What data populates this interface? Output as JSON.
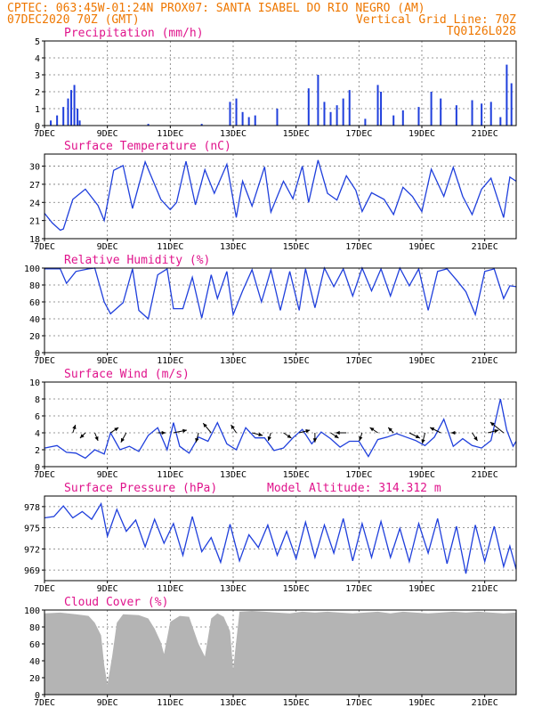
{
  "header": {
    "line1_left": "CPTEC:  063:45W-01:24N  PROX07: SANTA ISABEL DO RIO NEGRO (AM)",
    "line2_left": "07DEC2020 70Z (GMT)",
    "line2_right": "Vertical Grid Line: 70Z",
    "line3_right": "TQ0126L028"
  },
  "x_axis": {
    "start_day": 7,
    "end_day": 22,
    "tick_labels": [
      "7DEC",
      "9DEC",
      "11DEC",
      "13DEC",
      "15DEC",
      "17DEC",
      "19DEC",
      "21DEC"
    ],
    "tick_days": [
      7,
      9,
      11,
      13,
      15,
      17,
      19,
      21
    ]
  },
  "chart_data": [
    {
      "id": "precip",
      "type": "bar",
      "title": "Precipitation (mm/h)",
      "ylim": [
        0,
        5
      ],
      "yticks": [
        0,
        1,
        2,
        3,
        4,
        5
      ],
      "color": "#1f3fdc",
      "days": [
        7.2,
        7.4,
        7.6,
        7.75,
        7.85,
        7.95,
        8.05,
        8.12,
        10.3,
        12.0,
        12.9,
        13.1,
        13.3,
        13.5,
        13.7,
        14.4,
        15.4,
        15.7,
        15.9,
        16.1,
        16.3,
        16.5,
        16.7,
        17.2,
        17.6,
        17.7,
        18.1,
        18.4,
        18.9,
        19.3,
        19.6,
        20.1,
        20.6,
        20.9,
        21.2,
        21.5,
        21.7,
        21.85
      ],
      "values": [
        0.3,
        0.6,
        1.1,
        1.6,
        2.1,
        2.4,
        1.0,
        0.3,
        0.1,
        0.1,
        1.4,
        1.6,
        0.8,
        0.5,
        0.6,
        1.0,
        2.2,
        3.0,
        1.4,
        0.8,
        1.2,
        1.6,
        2.1,
        0.4,
        2.4,
        2.0,
        0.6,
        0.9,
        1.1,
        2.0,
        1.6,
        1.2,
        1.5,
        1.3,
        1.4,
        0.5,
        3.6,
        2.5
      ]
    },
    {
      "id": "temperature",
      "type": "line",
      "title": "Surface Temperature (nC)",
      "ylim": [
        18,
        32
      ],
      "yticks": [
        18,
        21,
        24,
        27,
        30
      ],
      "color": "#1f3fdc",
      "x": [
        7.0,
        7.25,
        7.5,
        7.6,
        7.9,
        8.3,
        8.7,
        8.9,
        9.2,
        9.5,
        9.8,
        10.2,
        10.7,
        11.0,
        11.2,
        11.5,
        11.8,
        12.1,
        12.4,
        12.8,
        13.1,
        13.3,
        13.6,
        14.0,
        14.2,
        14.6,
        14.9,
        15.2,
        15.4,
        15.7,
        16.0,
        16.3,
        16.6,
        16.9,
        17.1,
        17.4,
        17.8,
        18.1,
        18.4,
        18.7,
        19.0,
        19.3,
        19.7,
        20.0,
        20.3,
        20.6,
        20.9,
        21.2,
        21.6,
        21.8,
        22.0
      ],
      "y": [
        22.2,
        20.6,
        19.4,
        19.6,
        24.5,
        26.2,
        23.5,
        21.0,
        29.3,
        30.1,
        23.0,
        30.7,
        24.5,
        22.8,
        24.0,
        30.8,
        23.6,
        29.4,
        25.5,
        30.3,
        21.5,
        27.5,
        23.4,
        29.9,
        22.4,
        27.5,
        24.6,
        30.0,
        24.0,
        31.0,
        25.5,
        24.4,
        28.4,
        26.0,
        22.5,
        25.6,
        24.5,
        22.0,
        26.5,
        25.0,
        22.5,
        29.5,
        25.0,
        29.8,
        25.0,
        22.0,
        26.2,
        28.0,
        21.5,
        28.2,
        27.5
      ]
    },
    {
      "id": "humidity",
      "type": "line",
      "title": "Relative Humidity (%)",
      "ylim": [
        0,
        100
      ],
      "yticks": [
        0,
        20,
        40,
        60,
        80,
        100
      ],
      "color": "#1f3fdc",
      "x": [
        7.0,
        7.5,
        7.7,
        8.0,
        8.4,
        8.6,
        8.9,
        9.1,
        9.5,
        9.8,
        10.0,
        10.3,
        10.6,
        10.9,
        11.1,
        11.4,
        11.7,
        12.0,
        12.3,
        12.5,
        12.8,
        13.0,
        13.3,
        13.6,
        13.9,
        14.2,
        14.5,
        14.8,
        15.1,
        15.3,
        15.6,
        15.9,
        16.2,
        16.5,
        16.8,
        17.1,
        17.4,
        17.7,
        18.0,
        18.3,
        18.6,
        18.9,
        19.2,
        19.5,
        19.8,
        20.1,
        20.4,
        20.7,
        21.0,
        21.3,
        21.6,
        21.8,
        22.0
      ],
      "y": [
        99,
        99,
        82,
        96,
        99,
        100,
        60,
        46,
        59,
        99,
        50,
        40,
        92,
        99,
        52,
        52,
        89,
        41,
        92,
        64,
        96,
        45,
        73,
        98,
        60,
        98,
        50,
        96,
        50,
        99,
        53,
        100,
        78,
        99,
        67,
        100,
        73,
        99,
        67,
        100,
        79,
        99,
        50,
        96,
        99,
        86,
        72,
        45,
        96,
        99,
        64,
        79,
        78
      ]
    },
    {
      "id": "wind",
      "type": "line",
      "title": "Surface Wind (m/s)",
      "ylim": [
        0,
        10
      ],
      "yticks": [
        0,
        2,
        4,
        6,
        8,
        10
      ],
      "color": "#1f3fdc",
      "x": [
        7.0,
        7.4,
        7.7,
        8.0,
        8.3,
        8.6,
        8.9,
        9.1,
        9.4,
        9.7,
        10.0,
        10.3,
        10.6,
        10.9,
        11.1,
        11.3,
        11.6,
        11.9,
        12.2,
        12.5,
        12.8,
        13.1,
        13.4,
        13.7,
        14.0,
        14.3,
        14.6,
        14.9,
        15.2,
        15.5,
        15.8,
        16.1,
        16.4,
        16.7,
        17.0,
        17.3,
        17.6,
        17.9,
        18.2,
        18.5,
        18.8,
        19.1,
        19.4,
        19.7,
        20.0,
        20.3,
        20.6,
        20.9,
        21.2,
        21.5,
        21.7,
        21.9,
        22.0
      ],
      "y": [
        2.2,
        2.5,
        1.7,
        1.6,
        1.0,
        2.0,
        1.5,
        4.0,
        2.0,
        2.4,
        1.8,
        3.7,
        4.6,
        2.0,
        5.2,
        2.4,
        1.6,
        3.5,
        3.0,
        5.2,
        2.7,
        2.0,
        4.6,
        3.4,
        3.4,
        1.9,
        2.2,
        3.4,
        4.4,
        2.7,
        4.1,
        3.3,
        2.3,
        3.0,
        3.0,
        1.2,
        3.2,
        3.5,
        3.9,
        3.5,
        3.1,
        2.5,
        3.5,
        5.6,
        2.4,
        3.3,
        2.5,
        2.2,
        3.1,
        8.0,
        4.3,
        2.4,
        3.0
      ],
      "vector_days": [
        7.9,
        8.3,
        8.6,
        9.1,
        9.6,
        10.6,
        11.1,
        11.9,
        12.3,
        13.1,
        13.6,
        14.2,
        14.6,
        15.1,
        15.6,
        16.1,
        16.6,
        17.1,
        17.6,
        18.1,
        18.6,
        19.1,
        19.6,
        20.1,
        20.6,
        21.1,
        21.6
      ],
      "vector_u": [
        0.5,
        -1.0,
        0.6,
        1.5,
        -1.0,
        1.5,
        2.5,
        -0.5,
        -1.5,
        -1.0,
        2.0,
        -0.5,
        1.5,
        2.0,
        0.0,
        1.5,
        -2.0,
        -0.5,
        -1.5,
        -1.0,
        2.0,
        -0.5,
        -2.0,
        -1.0,
        1.0,
        2.0,
        -2.5
      ],
      "vector_v": [
        1.5,
        -1.0,
        -1.5,
        1.0,
        -1.8,
        0.0,
        0.5,
        -1.8,
        1.8,
        1.5,
        -0.5,
        -1.5,
        -1.0,
        0.5,
        -1.8,
        -1.0,
        0.0,
        -1.5,
        1.0,
        1.0,
        -1.0,
        -2.0,
        1.0,
        0.0,
        -1.5,
        0.5,
        2.0
      ]
    },
    {
      "id": "pressure",
      "type": "line",
      "title": "Surface Pressure (hPa)",
      "subtitle": "Model Altitude: 314.312 m",
      "ylim": [
        967.5,
        979.5
      ],
      "yticks": [
        969,
        972,
        975,
        978
      ],
      "color": "#1f3fdc",
      "x": [
        7.0,
        7.3,
        7.6,
        7.9,
        8.2,
        8.5,
        8.8,
        9.0,
        9.3,
        9.6,
        9.9,
        10.2,
        10.5,
        10.8,
        11.1,
        11.4,
        11.7,
        12.0,
        12.3,
        12.6,
        12.9,
        13.2,
        13.5,
        13.8,
        14.1,
        14.4,
        14.7,
        15.0,
        15.3,
        15.6,
        15.9,
        16.2,
        16.5,
        16.8,
        17.1,
        17.4,
        17.7,
        18.0,
        18.3,
        18.6,
        18.9,
        19.2,
        19.5,
        19.8,
        20.1,
        20.4,
        20.7,
        21.0,
        21.3,
        21.6,
        21.8,
        22.0
      ],
      "y": [
        976.4,
        976.6,
        978.1,
        976.4,
        977.3,
        976.2,
        978.4,
        973.8,
        977.6,
        974.5,
        976.1,
        972.3,
        976.2,
        972.8,
        975.6,
        971.1,
        976.6,
        971.6,
        973.6,
        970.1,
        975.5,
        970.3,
        974.0,
        972.2,
        975.4,
        971.1,
        974.5,
        970.6,
        975.8,
        970.8,
        975.4,
        971.4,
        976.3,
        970.3,
        975.6,
        970.8,
        975.9,
        970.8,
        974.9,
        970.2,
        975.6,
        971.4,
        976.3,
        969.9,
        975.2,
        968.5,
        975.4,
        970.2,
        975.2,
        969.5,
        972.4,
        969.1
      ]
    },
    {
      "id": "cloud",
      "type": "area",
      "title": "Cloud Cover (%)",
      "ylim": [
        0,
        100
      ],
      "yticks": [
        0,
        20,
        40,
        60,
        80,
        100
      ],
      "color": "#b4b4b4",
      "x": [
        7.0,
        7.5,
        8.0,
        8.4,
        8.6,
        8.8,
        8.9,
        9.0,
        9.15,
        9.3,
        9.5,
        10.0,
        10.3,
        10.5,
        10.7,
        10.8,
        11.0,
        11.3,
        11.6,
        11.9,
        12.1,
        12.3,
        12.5,
        12.7,
        12.9,
        13.0,
        13.2,
        13.6,
        14.0,
        14.4,
        14.8,
        15.2,
        15.6,
        16.0,
        16.4,
        16.8,
        17.2,
        17.6,
        18.0,
        18.4,
        18.8,
        19.2,
        19.6,
        20.0,
        20.4,
        20.8,
        21.2,
        21.6,
        22.0
      ],
      "y": [
        96,
        97,
        95,
        93,
        85,
        70,
        35,
        12,
        45,
        85,
        95,
        94,
        90,
        78,
        62,
        48,
        86,
        93,
        92,
        60,
        45,
        90,
        96,
        92,
        75,
        30,
        98,
        99,
        98,
        97,
        96,
        98,
        97,
        98,
        97,
        96,
        97,
        98,
        96,
        98,
        97,
        96,
        97,
        98,
        97,
        98,
        97,
        96,
        97
      ]
    }
  ]
}
